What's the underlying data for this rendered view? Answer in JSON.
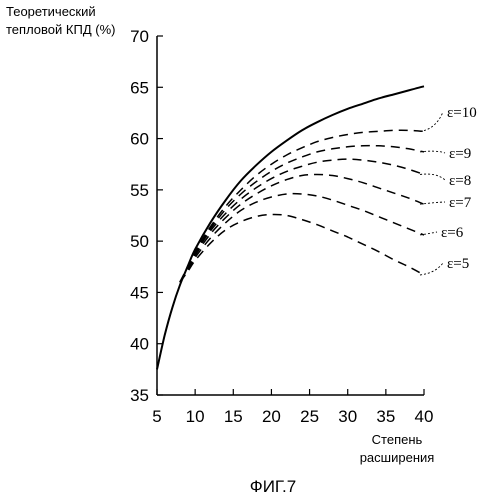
{
  "chart_data": {
    "type": "line",
    "title": "",
    "ylabel_lines": [
      "Теоретический",
      "тепловой КПД (%)"
    ],
    "xlabel_lines": [
      "Степень",
      "расширения"
    ],
    "caption": "ФИГ.7",
    "xlim": [
      5,
      40
    ],
    "ylim": [
      35,
      70
    ],
    "x_ticks": [
      5,
      10,
      15,
      20,
      25,
      30,
      35,
      40
    ],
    "y_ticks": [
      35,
      40,
      45,
      50,
      55,
      60,
      65,
      70
    ],
    "grid": false,
    "series": [
      {
        "style": "solid",
        "x": [
          5,
          6,
          7,
          8,
          9,
          10,
          12,
          14,
          16,
          18,
          20,
          22,
          24,
          26,
          28,
          30,
          32,
          34,
          36,
          38,
          40
        ],
        "y": [
          37.5,
          40.8,
          43.5,
          45.7,
          47.5,
          49.2,
          51.8,
          54.0,
          55.9,
          57.4,
          58.7,
          59.8,
          60.8,
          61.6,
          62.3,
          62.9,
          63.4,
          63.9,
          64.3,
          64.7,
          65.1
        ]
      },
      {
        "style": "dashed",
        "label": "ε=10",
        "x": [
          8,
          9,
          10,
          12,
          14,
          16,
          18,
          20,
          22,
          24,
          26,
          28,
          30,
          32,
          34,
          36,
          38,
          40
        ],
        "y": [
          46.0,
          47.5,
          49.0,
          51.4,
          53.4,
          55.0,
          56.4,
          57.5,
          58.4,
          59.1,
          59.7,
          60.1,
          60.4,
          60.6,
          60.7,
          60.8,
          60.8,
          60.7
        ]
      },
      {
        "style": "dashed",
        "label": "ε=9",
        "x": [
          8,
          9,
          10,
          12,
          14,
          16,
          18,
          20,
          22,
          24,
          26,
          28,
          30,
          32,
          34,
          36,
          38,
          40
        ],
        "y": [
          46.0,
          47.4,
          48.9,
          51.2,
          53.1,
          54.6,
          55.8,
          56.8,
          57.6,
          58.2,
          58.7,
          59.0,
          59.2,
          59.3,
          59.3,
          59.2,
          59.0,
          58.7
        ]
      },
      {
        "style": "dashed",
        "label": "ε=8",
        "x": [
          8,
          9,
          10,
          12,
          14,
          16,
          18,
          20,
          22,
          24,
          26,
          28,
          30,
          32,
          34,
          36,
          38,
          40
        ],
        "y": [
          46.0,
          47.3,
          48.8,
          51.0,
          52.7,
          54.1,
          55.2,
          56.1,
          56.8,
          57.3,
          57.7,
          57.9,
          58.0,
          57.9,
          57.7,
          57.4,
          57.0,
          56.5
        ]
      },
      {
        "style": "dashed",
        "label": "ε=7",
        "x": [
          8,
          9,
          10,
          12,
          14,
          16,
          18,
          20,
          22,
          24,
          26,
          28,
          30,
          32,
          34,
          36,
          38,
          40
        ],
        "y": [
          46.0,
          47.2,
          48.6,
          50.7,
          52.3,
          53.6,
          54.6,
          55.4,
          56.0,
          56.4,
          56.5,
          56.4,
          56.1,
          55.7,
          55.2,
          54.7,
          54.2,
          53.6
        ]
      },
      {
        "style": "dashed",
        "label": "ε=6",
        "x": [
          8,
          9,
          10,
          12,
          14,
          16,
          18,
          20,
          22,
          24,
          26,
          28,
          30,
          32,
          34,
          36,
          38,
          40
        ],
        "y": [
          46.0,
          47.1,
          48.4,
          50.3,
          51.8,
          53.0,
          53.8,
          54.3,
          54.6,
          54.6,
          54.4,
          54.0,
          53.5,
          53.0,
          52.4,
          51.8,
          51.2,
          50.6
        ]
      },
      {
        "style": "dashed",
        "label": "ε=5",
        "x": [
          8,
          9,
          10,
          12,
          14,
          16,
          18,
          20,
          22,
          24,
          26,
          28,
          30,
          32,
          34,
          36,
          38,
          40
        ],
        "y": [
          46.0,
          47.0,
          48.1,
          49.8,
          51.1,
          51.9,
          52.4,
          52.6,
          52.5,
          52.1,
          51.6,
          51.0,
          50.4,
          49.7,
          49.0,
          48.2,
          47.5,
          46.7
        ]
      }
    ]
  }
}
